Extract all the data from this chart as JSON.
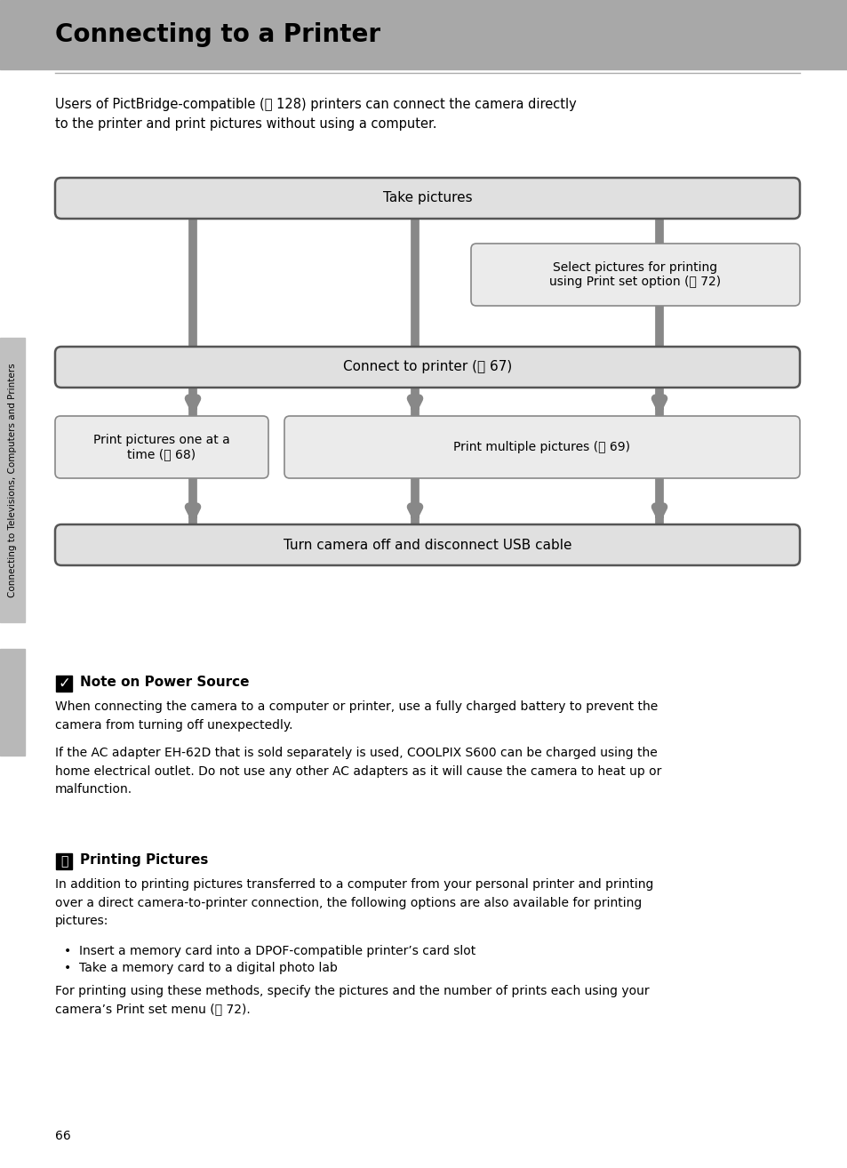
{
  "title": "Connecting to a Printer",
  "bg_color": "#ffffff",
  "header_bg": "#a8a8a8",
  "intro_text": "Users of PictBridge-compatible (ⓘ 128) printers can connect the camera directly\nto the printer and print pictures without using a computer.",
  "box_bg_main": "#e0e0e0",
  "box_bg_sub": "#ebebeb",
  "box_border_main": "#555555",
  "box_border_sub": "#888888",
  "arrow_color": "#888888",
  "flowchart": {
    "take_pictures": "Take pictures",
    "select_pictures": "Select pictures for printing\nusing Print set option (ⓘ 72)",
    "connect_printer": "Connect to printer (ⓘ 67)",
    "print_one": "Print pictures one at a\ntime (ⓘ 68)",
    "print_multiple": "Print multiple pictures (ⓘ 69)",
    "turn_off": "Turn camera off and disconnect USB cable"
  },
  "note_title": "Note on Power Source",
  "note_text1": "When connecting the camera to a computer or printer, use a fully charged battery to prevent the\ncamera from turning off unexpectedly.",
  "note_text2": "If the AC adapter EH-62D that is sold separately is used, COOLPIX S600 can be charged using the\nhome electrical outlet. Do not use any other AC adapters as it will cause the camera to heat up or\nmalfunction.",
  "printing_title": "Printing Pictures",
  "printing_text1": "In addition to printing pictures transferred to a computer from your personal printer and printing\nover a direct camera-to-printer connection, the following options are also available for printing\npictures:",
  "bullet1": "Insert a memory card into a DPOF-compatible printer’s card slot",
  "bullet2": "Take a memory card to a digital photo lab",
  "printing_text2": "For printing using these methods, specify the pictures and the number of prints each using your\ncamera’s Print set menu (ⓘ 72).",
  "page_number": "66",
  "sidebar_text": "Connecting to Televisions, Computers and Printers",
  "sidebar_bg": "#c0c0c0"
}
